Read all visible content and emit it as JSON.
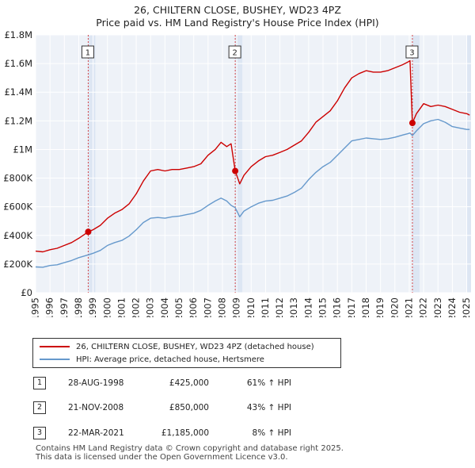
{
  "title_line1": "26, CHILTERN CLOSE, BUSHEY, WD23 4PZ",
  "title_line2": "Price paid vs. HM Land Registry's House Price Index (HPI)",
  "chart_data": {
    "type": "line",
    "title": "26, CHILTERN CLOSE, BUSHEY, WD23 4PZ — Price paid vs. HM Land Registry's House Price Index (HPI)",
    "xlabel": "",
    "ylabel": "",
    "xlim": [
      1995,
      2025.3
    ],
    "ylim": [
      0,
      1800000
    ],
    "grid": true,
    "x_ticks": [
      1995,
      1996,
      1997,
      1998,
      1999,
      2000,
      2001,
      2002,
      2003,
      2004,
      2005,
      2006,
      2007,
      2008,
      2009,
      2010,
      2011,
      2012,
      2013,
      2014,
      2015,
      2016,
      2017,
      2018,
      2019,
      2020,
      2021,
      2022,
      2023,
      2024,
      2025
    ],
    "x_tick_labels": [
      "1995",
      "1996",
      "1997",
      "1998",
      "1999",
      "2000",
      "2001",
      "2002",
      "2003",
      "2004",
      "2005",
      "2006",
      "2007",
      "2008",
      "2009",
      "2010",
      "2011",
      "2012",
      "2013",
      "2014",
      "2015",
      "2016",
      "2017",
      "2018",
      "2019",
      "2020",
      "2021",
      "2022",
      "2023",
      "2024",
      "2025"
    ],
    "y_ticks": [
      0,
      200000,
      400000,
      600000,
      800000,
      1000000,
      1200000,
      1400000,
      1600000,
      1800000
    ],
    "y_tick_labels": [
      "£0",
      "£200K",
      "£400K",
      "£600K",
      "£800K",
      "£1M",
      "£1.2M",
      "£1.4M",
      "£1.6M",
      "£1.8M"
    ],
    "series": [
      {
        "name": "26, CHILTERN CLOSE, BUSHEY, WD23 4PZ (detached house)",
        "color": "#cc0000",
        "x": [
          1995.0,
          1995.5,
          1996.0,
          1996.5,
          1997.0,
          1997.5,
          1998.0,
          1998.66,
          1999.0,
          1999.5,
          2000.0,
          2000.5,
          2001.0,
          2001.5,
          2002.0,
          2002.5,
          2003.0,
          2003.5,
          2004.0,
          2004.5,
          2005.0,
          2005.5,
          2006.0,
          2006.5,
          2007.0,
          2007.5,
          2007.9,
          2008.3,
          2008.6,
          2008.89,
          2009.2,
          2009.5,
          2010.0,
          2010.5,
          2011.0,
          2011.5,
          2012.0,
          2012.5,
          2013.0,
          2013.5,
          2014.0,
          2014.5,
          2015.0,
          2015.5,
          2016.0,
          2016.5,
          2017.0,
          2017.5,
          2018.0,
          2018.5,
          2019.0,
          2019.5,
          2020.0,
          2020.5,
          2020.9,
          2021.05,
          2021.22,
          2021.5,
          2022.0,
          2022.5,
          2023.0,
          2023.5,
          2024.0,
          2024.5,
          2025.0,
          2025.2
        ],
        "y": [
          290000,
          285000,
          300000,
          310000,
          330000,
          350000,
          380000,
          425000,
          440000,
          470000,
          520000,
          555000,
          580000,
          620000,
          690000,
          780000,
          850000,
          860000,
          850000,
          860000,
          860000,
          870000,
          880000,
          900000,
          960000,
          1000000,
          1050000,
          1020000,
          1040000,
          850000,
          760000,
          820000,
          880000,
          920000,
          950000,
          960000,
          980000,
          1000000,
          1030000,
          1060000,
          1120000,
          1190000,
          1230000,
          1270000,
          1340000,
          1430000,
          1500000,
          1530000,
          1550000,
          1540000,
          1540000,
          1550000,
          1570000,
          1590000,
          1610000,
          1620000,
          1185000,
          1250000,
          1320000,
          1300000,
          1310000,
          1300000,
          1280000,
          1260000,
          1250000,
          1240000
        ]
      },
      {
        "name": "HPI: Average price, detached house, Hertsmere",
        "color": "#6699cc",
        "x": [
          1995.0,
          1995.5,
          1996.0,
          1996.5,
          1997.0,
          1997.5,
          1998.0,
          1998.66,
          1999.0,
          1999.5,
          2000.0,
          2000.5,
          2001.0,
          2001.5,
          2002.0,
          2002.5,
          2003.0,
          2003.5,
          2004.0,
          2004.5,
          2005.0,
          2005.5,
          2006.0,
          2006.5,
          2007.0,
          2007.5,
          2007.9,
          2008.3,
          2008.6,
          2008.89,
          2009.2,
          2009.5,
          2010.0,
          2010.5,
          2011.0,
          2011.5,
          2012.0,
          2012.5,
          2013.0,
          2013.5,
          2014.0,
          2014.5,
          2015.0,
          2015.5,
          2016.0,
          2016.5,
          2017.0,
          2017.5,
          2018.0,
          2018.5,
          2019.0,
          2019.5,
          2020.0,
          2020.5,
          2020.9,
          2021.05,
          2021.22,
          2021.5,
          2022.0,
          2022.5,
          2023.0,
          2023.5,
          2024.0,
          2024.5,
          2025.0,
          2025.2
        ],
        "y": [
          180000,
          178000,
          190000,
          195000,
          210000,
          225000,
          245000,
          264000,
          275000,
          295000,
          330000,
          350000,
          365000,
          395000,
          440000,
          490000,
          520000,
          525000,
          520000,
          530000,
          535000,
          545000,
          555000,
          575000,
          610000,
          640000,
          660000,
          640000,
          610000,
          594000,
          530000,
          570000,
          600000,
          625000,
          640000,
          645000,
          660000,
          675000,
          700000,
          730000,
          790000,
          840000,
          880000,
          910000,
          960000,
          1010000,
          1060000,
          1070000,
          1080000,
          1075000,
          1070000,
          1075000,
          1085000,
          1100000,
          1110000,
          1115000,
          1097000,
          1130000,
          1180000,
          1200000,
          1210000,
          1190000,
          1160000,
          1150000,
          1140000,
          1140000
        ]
      }
    ],
    "markers": [
      {
        "label": "1",
        "x": 1998.66,
        "y": 425000
      },
      {
        "label": "2",
        "x": 2008.89,
        "y": 850000
      },
      {
        "label": "3",
        "x": 2021.22,
        "y": 1185000
      }
    ]
  },
  "legend": {
    "items": [
      {
        "label": "26, CHILTERN CLOSE, BUSHEY, WD23 4PZ (detached house)",
        "color": "#cc0000"
      },
      {
        "label": "HPI: Average price, detached house, Hertsmere",
        "color": "#6699cc"
      }
    ]
  },
  "sales": [
    {
      "num": "1",
      "date": "28-AUG-1998",
      "price": "£425,000",
      "hpi": "61% ↑ HPI"
    },
    {
      "num": "2",
      "date": "21-NOV-2008",
      "price": "£850,000",
      "hpi": "43% ↑ HPI"
    },
    {
      "num": "3",
      "date": "22-MAR-2021",
      "price": "£1,185,000",
      "hpi": "8% ↑ HPI"
    }
  ],
  "footer": {
    "line1": "Contains HM Land Registry data © Crown copyright and database right 2025.",
    "line2": "This data is licensed under the Open Government Licence v3.0."
  },
  "colors": {
    "plot_background": "#eef2f8",
    "grid": "#ffffff",
    "shade": "#dde6f3",
    "vline": "#cc0000",
    "axis_text": "#222222"
  }
}
